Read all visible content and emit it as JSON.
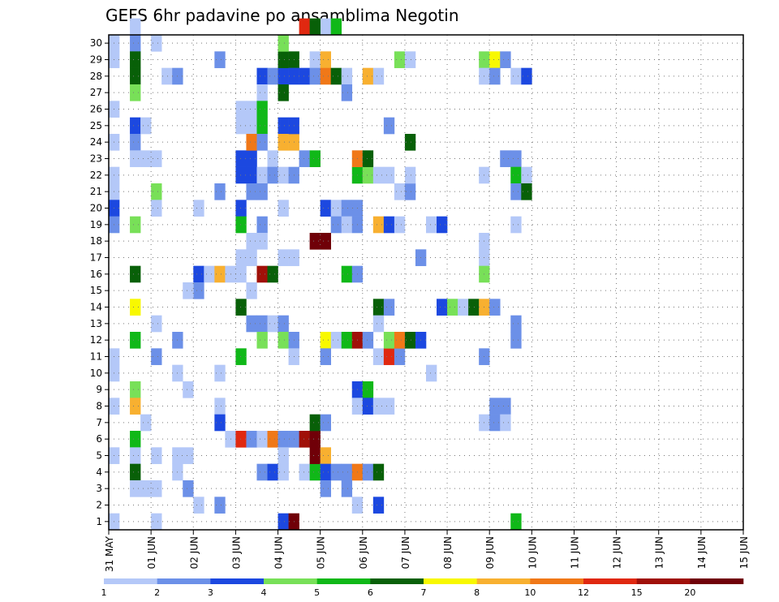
{
  "chart_data": {
    "type": "heatmap",
    "title": "GEFS 6hr padavine po ansamblima Negotin",
    "x_ticks": [
      "31 MAY",
      "01 JUN",
      "02 JUN",
      "03 JUN",
      "04 JUN",
      "05 JUN",
      "06 JUN",
      "07 JUN",
      "08 JUN",
      "09 JUN",
      "10 JUN",
      "11 JUN",
      "12 JUN",
      "13 JUN",
      "14 JUN",
      "15 JUN"
    ],
    "y_ticks": [
      1,
      2,
      3,
      4,
      5,
      6,
      7,
      8,
      9,
      10,
      11,
      12,
      13,
      14,
      15,
      16,
      17,
      18,
      19,
      20,
      21,
      22,
      23,
      24,
      25,
      26,
      27,
      28,
      29,
      30
    ],
    "xlim_days": [
      0,
      15
    ],
    "ylim_members": [
      0,
      30
    ],
    "time_step_hours": 6,
    "grid": true,
    "colorbar": {
      "labels": [
        "1",
        "2",
        "3",
        "4",
        "5",
        "6",
        "7",
        "8",
        "10",
        "12",
        "15",
        "20"
      ],
      "colors": [
        "#b4c8f8",
        "#6c90e8",
        "#1c48e0",
        "#78e058",
        "#10b818",
        "#086008",
        "#f8f800",
        "#f8b030",
        "#f07818",
        "#e02810",
        "#a01008",
        "#700008"
      ]
    },
    "cells": [
      {
        "t": 0,
        "m": 0,
        "c": 0
      },
      {
        "t": 2,
        "m": 30,
        "c": 0
      },
      {
        "t": 0,
        "m": 29,
        "c": 0
      },
      {
        "t": 0,
        "m": 28,
        "c": 0
      },
      {
        "t": 0,
        "m": 25,
        "c": 0
      },
      {
        "t": 0,
        "m": 23,
        "c": 0
      },
      {
        "t": 0,
        "m": 21,
        "c": 0
      },
      {
        "t": 0,
        "m": 20,
        "c": 0
      },
      {
        "t": 0,
        "m": 19,
        "c": 2
      },
      {
        "t": 0,
        "m": 18,
        "c": 1
      },
      {
        "t": 0,
        "m": 10,
        "c": 0
      },
      {
        "t": 0,
        "m": 9,
        "c": 0
      },
      {
        "t": 0,
        "m": 7,
        "c": 0
      },
      {
        "t": 0,
        "m": 4,
        "c": 0
      },
      {
        "t": 2,
        "m": 29,
        "c": 1
      },
      {
        "t": 2,
        "m": 28,
        "c": 5
      },
      {
        "t": 2,
        "m": 27,
        "c": 5
      },
      {
        "t": 2,
        "m": 26,
        "c": 3
      },
      {
        "t": 2,
        "m": 24,
        "c": 2
      },
      {
        "t": 2,
        "m": 23,
        "c": 1
      },
      {
        "t": 2,
        "m": 22,
        "c": 0
      },
      {
        "t": 3,
        "m": 22,
        "c": 0
      },
      {
        "t": 3,
        "m": 24,
        "c": 0
      },
      {
        "t": 2,
        "m": 18,
        "c": 3
      },
      {
        "t": 2,
        "m": 15,
        "c": 5
      },
      {
        "t": 2,
        "m": 13,
        "c": 6
      },
      {
        "t": 2,
        "m": 11,
        "c": 4
      },
      {
        "t": 2,
        "m": 8,
        "c": 3
      },
      {
        "t": 2,
        "m": 7,
        "c": 7
      },
      {
        "t": 3,
        "m": 6,
        "c": 0
      },
      {
        "t": 2,
        "m": 5,
        "c": 4
      },
      {
        "t": 2,
        "m": 4,
        "c": 0
      },
      {
        "t": 2,
        "m": 3,
        "c": 5
      },
      {
        "t": 2,
        "m": 2,
        "c": 0
      },
      {
        "t": 3,
        "m": 2,
        "c": 0
      },
      {
        "t": 4,
        "m": 29,
        "c": 0
      },
      {
        "t": 4,
        "m": 22,
        "c": 0
      },
      {
        "t": 4,
        "m": 20,
        "c": 3
      },
      {
        "t": 4,
        "m": 19,
        "c": 0
      },
      {
        "t": 4,
        "m": 12,
        "c": 0
      },
      {
        "t": 4,
        "m": 10,
        "c": 1
      },
      {
        "t": 4,
        "m": 4,
        "c": 0
      },
      {
        "t": 4,
        "m": 2,
        "c": 0
      },
      {
        "t": 4,
        "m": 0,
        "c": 0
      },
      {
        "t": 5,
        "m": 27,
        "c": 0
      },
      {
        "t": 6,
        "m": 27,
        "c": 1
      },
      {
        "t": 6,
        "m": 11,
        "c": 1
      },
      {
        "t": 6,
        "m": 9,
        "c": 0
      },
      {
        "t": 6,
        "m": 4,
        "c": 0
      },
      {
        "t": 7,
        "m": 4,
        "c": 0
      },
      {
        "t": 7,
        "m": 8,
        "c": 0
      },
      {
        "t": 6,
        "m": 3,
        "c": 0
      },
      {
        "t": 7,
        "m": 2,
        "c": 1
      },
      {
        "t": 8,
        "m": 19,
        "c": 0
      },
      {
        "t": 8,
        "m": 15,
        "c": 2
      },
      {
        "t": 9,
        "m": 15,
        "c": 0
      },
      {
        "t": 8,
        "m": 14,
        "c": 1
      },
      {
        "t": 7,
        "m": 14,
        "c": 0
      },
      {
        "t": 8,
        "m": 1,
        "c": 0
      },
      {
        "t": 10,
        "m": 28,
        "c": 1
      },
      {
        "t": 10,
        "m": 20,
        "c": 1
      },
      {
        "t": 10,
        "m": 15,
        "c": 7
      },
      {
        "t": 11,
        "m": 15,
        "c": 0
      },
      {
        "t": 10,
        "m": 7,
        "c": 0
      },
      {
        "t": 10,
        "m": 6,
        "c": 2
      },
      {
        "t": 10,
        "m": 9,
        "c": 0
      },
      {
        "t": 11,
        "m": 5,
        "c": 0
      },
      {
        "t": 10,
        "m": 1,
        "c": 1
      },
      {
        "t": 12,
        "m": 22,
        "c": 2
      },
      {
        "t": 13,
        "m": 22,
        "c": 2
      },
      {
        "t": 12,
        "m": 21,
        "c": 2
      },
      {
        "t": 12,
        "m": 19,
        "c": 2
      },
      {
        "t": 12,
        "m": 18,
        "c": 4
      },
      {
        "t": 12,
        "m": 15,
        "c": 0
      },
      {
        "t": 12,
        "m": 13,
        "c": 5
      },
      {
        "t": 12,
        "m": 5,
        "c": 9
      },
      {
        "t": 13,
        "m": 5,
        "c": 1
      },
      {
        "t": 12,
        "m": 25,
        "c": 0
      },
      {
        "t": 13,
        "m": 25,
        "c": 0
      },
      {
        "t": 12,
        "m": 24,
        "c": 0
      },
      {
        "t": 13,
        "m": 24,
        "c": 0
      },
      {
        "t": 13,
        "m": 21,
        "c": 2
      },
      {
        "t": 13,
        "m": 20,
        "c": 1
      },
      {
        "t": 13,
        "m": 17,
        "c": 0
      },
      {
        "t": 12,
        "m": 16,
        "c": 0
      },
      {
        "t": 13,
        "m": 16,
        "c": 0
      },
      {
        "t": 13,
        "m": 14,
        "c": 0
      },
      {
        "t": 13,
        "m": 12,
        "c": 1
      },
      {
        "t": 12,
        "m": 10,
        "c": 4
      },
      {
        "t": 14,
        "m": 27,
        "c": 2
      },
      {
        "t": 15,
        "m": 27,
        "c": 1
      },
      {
        "t": 16,
        "m": 27,
        "c": 2
      },
      {
        "t": 14,
        "m": 26,
        "c": 0
      },
      {
        "t": 14,
        "m": 25,
        "c": 4
      },
      {
        "t": 14,
        "m": 24,
        "c": 4
      },
      {
        "t": 13,
        "m": 23,
        "c": 8
      },
      {
        "t": 14,
        "m": 23,
        "c": 1
      },
      {
        "t": 15,
        "m": 22,
        "c": 0
      },
      {
        "t": 14,
        "m": 21,
        "c": 0
      },
      {
        "t": 15,
        "m": 21,
        "c": 1
      },
      {
        "t": 14,
        "m": 20,
        "c": 1
      },
      {
        "t": 14,
        "m": 18,
        "c": 1
      },
      {
        "t": 14,
        "m": 17,
        "c": 0
      },
      {
        "t": 14,
        "m": 15,
        "c": 10
      },
      {
        "t": 15,
        "m": 15,
        "c": 5
      },
      {
        "t": 14,
        "m": 12,
        "c": 1
      },
      {
        "t": 15,
        "m": 12,
        "c": 0
      },
      {
        "t": 16,
        "m": 12,
        "c": 1
      },
      {
        "t": 14,
        "m": 11,
        "c": 3
      },
      {
        "t": 14,
        "m": 5,
        "c": 0
      },
      {
        "t": 15,
        "m": 5,
        "c": 8
      },
      {
        "t": 14,
        "m": 3,
        "c": 1
      },
      {
        "t": 15,
        "m": 3,
        "c": 2
      },
      {
        "t": 16,
        "m": 28,
        "c": 5
      },
      {
        "t": 17,
        "m": 28,
        "c": 5
      },
      {
        "t": 16,
        "m": 29,
        "c": 3
      },
      {
        "t": 16,
        "m": 26,
        "c": 5
      },
      {
        "t": 16,
        "m": 24,
        "c": 2
      },
      {
        "t": 16,
        "m": 23,
        "c": 7
      },
      {
        "t": 17,
        "m": 23,
        "c": 7
      },
      {
        "t": 16,
        "m": 21,
        "c": 0
      },
      {
        "t": 17,
        "m": 21,
        "c": 1
      },
      {
        "t": 16,
        "m": 19,
        "c": 0
      },
      {
        "t": 16,
        "m": 16,
        "c": 0
      },
      {
        "t": 17,
        "m": 16,
        "c": 0
      },
      {
        "t": 16,
        "m": 11,
        "c": 3
      },
      {
        "t": 17,
        "m": 11,
        "c": 1
      },
      {
        "t": 16,
        "m": 5,
        "c": 1
      },
      {
        "t": 17,
        "m": 5,
        "c": 1
      },
      {
        "t": 16,
        "m": 4,
        "c": 0
      },
      {
        "t": 16,
        "m": 3,
        "c": 0
      },
      {
        "t": 16,
        "m": 0,
        "c": 2
      },
      {
        "t": 17,
        "m": 0,
        "c": 11
      },
      {
        "t": 17,
        "m": 27,
        "c": 2
      },
      {
        "t": 18,
        "m": 27,
        "c": 2
      },
      {
        "t": 17,
        "m": 24,
        "c": 2
      },
      {
        "t": 17,
        "m": 10,
        "c": 0
      },
      {
        "t": 18,
        "m": 5,
        "c": 10
      },
      {
        "t": 19,
        "m": 5,
        "c": 11
      },
      {
        "t": 18,
        "m": 22,
        "c": 1
      },
      {
        "t": 19,
        "m": 22,
        "c": 4
      },
      {
        "t": 18,
        "m": 3,
        "c": 0
      },
      {
        "t": 19,
        "m": 3,
        "c": 4
      },
      {
        "t": 19,
        "m": 28,
        "c": 0
      },
      {
        "t": 20,
        "m": 28,
        "c": 7
      },
      {
        "t": 19,
        "m": 27,
        "c": 1
      },
      {
        "t": 20,
        "m": 27,
        "c": 8
      },
      {
        "t": 21,
        "m": 27,
        "c": 5
      },
      {
        "t": 20,
        "m": 30,
        "c": 0
      },
      {
        "t": 21,
        "m": 30,
        "c": 4
      },
      {
        "t": 18,
        "m": 30,
        "c": 9
      },
      {
        "t": 19,
        "m": 30,
        "c": 5
      },
      {
        "t": 20,
        "m": 19,
        "c": 2
      },
      {
        "t": 21,
        "m": 19,
        "c": 0
      },
      {
        "t": 21,
        "m": 18,
        "c": 1
      },
      {
        "t": 19,
        "m": 17,
        "c": 11
      },
      {
        "t": 20,
        "m": 17,
        "c": 11
      },
      {
        "t": 20,
        "m": 11,
        "c": 6
      },
      {
        "t": 21,
        "m": 11,
        "c": 0
      },
      {
        "t": 20,
        "m": 10,
        "c": 1
      },
      {
        "t": 19,
        "m": 6,
        "c": 5
      },
      {
        "t": 20,
        "m": 6,
        "c": 1
      },
      {
        "t": 19,
        "m": 4,
        "c": 11
      },
      {
        "t": 20,
        "m": 4,
        "c": 7
      },
      {
        "t": 20,
        "m": 3,
        "c": 2
      },
      {
        "t": 21,
        "m": 3,
        "c": 1
      },
      {
        "t": 20,
        "m": 2,
        "c": 1
      },
      {
        "t": 22,
        "m": 27,
        "c": 0
      },
      {
        "t": 22,
        "m": 26,
        "c": 1
      },
      {
        "t": 22,
        "m": 19,
        "c": 1
      },
      {
        "t": 23,
        "m": 19,
        "c": 1
      },
      {
        "t": 22,
        "m": 18,
        "c": 0
      },
      {
        "t": 23,
        "m": 18,
        "c": 1
      },
      {
        "t": 22,
        "m": 11,
        "c": 4
      },
      {
        "t": 23,
        "m": 11,
        "c": 10
      },
      {
        "t": 24,
        "m": 11,
        "c": 1
      },
      {
        "t": 22,
        "m": 3,
        "c": 1
      },
      {
        "t": 23,
        "m": 3,
        "c": 8
      },
      {
        "t": 24,
        "m": 3,
        "c": 1
      },
      {
        "t": 23,
        "m": 8,
        "c": 2
      },
      {
        "t": 24,
        "m": 8,
        "c": 4
      },
      {
        "t": 23,
        "m": 7,
        "c": 0
      },
      {
        "t": 24,
        "m": 7,
        "c": 2
      },
      {
        "t": 25,
        "m": 7,
        "c": 0
      },
      {
        "t": 23,
        "m": 21,
        "c": 4
      },
      {
        "t": 24,
        "m": 21,
        "c": 3
      },
      {
        "t": 23,
        "m": 22,
        "c": 8
      },
      {
        "t": 24,
        "m": 22,
        "c": 5
      },
      {
        "t": 22,
        "m": 15,
        "c": 4
      },
      {
        "t": 23,
        "m": 15,
        "c": 1
      },
      {
        "t": 23,
        "m": 1,
        "c": 0
      },
      {
        "t": 22,
        "m": 2,
        "c": 1
      },
      {
        "t": 24,
        "m": 27,
        "c": 7
      },
      {
        "t": 25,
        "m": 27,
        "c": 0
      },
      {
        "t": 25,
        "m": 21,
        "c": 0
      },
      {
        "t": 26,
        "m": 21,
        "c": 0
      },
      {
        "t": 25,
        "m": 18,
        "c": 7
      },
      {
        "t": 26,
        "m": 18,
        "c": 2
      },
      {
        "t": 27,
        "m": 18,
        "c": 0
      },
      {
        "t": 26,
        "m": 24,
        "c": 1
      },
      {
        "t": 25,
        "m": 13,
        "c": 5
      },
      {
        "t": 26,
        "m": 13,
        "c": 1
      },
      {
        "t": 25,
        "m": 10,
        "c": 0
      },
      {
        "t": 26,
        "m": 10,
        "c": 9
      },
      {
        "t": 25,
        "m": 3,
        "c": 5
      },
      {
        "t": 25,
        "m": 1,
        "c": 2
      },
      {
        "t": 25,
        "m": 12,
        "c": 0
      },
      {
        "t": 26,
        "m": 7,
        "c": 0
      },
      {
        "t": 27,
        "m": 10,
        "c": 1
      },
      {
        "t": 27,
        "m": 28,
        "c": 3
      },
      {
        "t": 28,
        "m": 28,
        "c": 0
      },
      {
        "t": 26,
        "m": 11,
        "c": 3
      },
      {
        "t": 27,
        "m": 11,
        "c": 8
      },
      {
        "t": 28,
        "m": 11,
        "c": 5
      },
      {
        "t": 29,
        "m": 11,
        "c": 2
      },
      {
        "t": 27,
        "m": 20,
        "c": 0
      },
      {
        "t": 28,
        "m": 20,
        "c": 1
      },
      {
        "t": 28,
        "m": 21,
        "c": 0
      },
      {
        "t": 28,
        "m": 23,
        "c": 5
      },
      {
        "t": 29,
        "m": 16,
        "c": 1
      },
      {
        "t": 30,
        "m": 18,
        "c": 0
      },
      {
        "t": 31,
        "m": 18,
        "c": 2
      },
      {
        "t": 31,
        "m": 13,
        "c": 2
      },
      {
        "t": 32,
        "m": 13,
        "c": 3
      },
      {
        "t": 33,
        "m": 13,
        "c": 0
      },
      {
        "t": 34,
        "m": 13,
        "c": 5
      },
      {
        "t": 30,
        "m": 9,
        "c": 0
      },
      {
        "t": 35,
        "m": 28,
        "c": 3
      },
      {
        "t": 36,
        "m": 28,
        "c": 6
      },
      {
        "t": 37,
        "m": 28,
        "c": 1
      },
      {
        "t": 35,
        "m": 27,
        "c": 0
      },
      {
        "t": 36,
        "m": 27,
        "c": 1
      },
      {
        "t": 38,
        "m": 27,
        "c": 0
      },
      {
        "t": 39,
        "m": 27,
        "c": 2
      },
      {
        "t": 37,
        "m": 22,
        "c": 1
      },
      {
        "t": 38,
        "m": 22,
        "c": 1
      },
      {
        "t": 38,
        "m": 21,
        "c": 4
      },
      {
        "t": 39,
        "m": 21,
        "c": 0
      },
      {
        "t": 38,
        "m": 20,
        "c": 1
      },
      {
        "t": 39,
        "m": 20,
        "c": 5
      },
      {
        "t": 35,
        "m": 21,
        "c": 0
      },
      {
        "t": 35,
        "m": 17,
        "c": 0
      },
      {
        "t": 35,
        "m": 16,
        "c": 0
      },
      {
        "t": 35,
        "m": 15,
        "c": 3
      },
      {
        "t": 35,
        "m": 13,
        "c": 7
      },
      {
        "t": 36,
        "m": 13,
        "c": 1
      },
      {
        "t": 38,
        "m": 18,
        "c": 0
      },
      {
        "t": 38,
        "m": 12,
        "c": 1
      },
      {
        "t": 38,
        "m": 11,
        "c": 1
      },
      {
        "t": 35,
        "m": 10,
        "c": 1
      },
      {
        "t": 36,
        "m": 7,
        "c": 1
      },
      {
        "t": 37,
        "m": 7,
        "c": 1
      },
      {
        "t": 35,
        "m": 6,
        "c": 0
      },
      {
        "t": 36,
        "m": 6,
        "c": 1
      },
      {
        "t": 37,
        "m": 6,
        "c": 0
      },
      {
        "t": 38,
        "m": 0,
        "c": 4
      }
    ]
  }
}
